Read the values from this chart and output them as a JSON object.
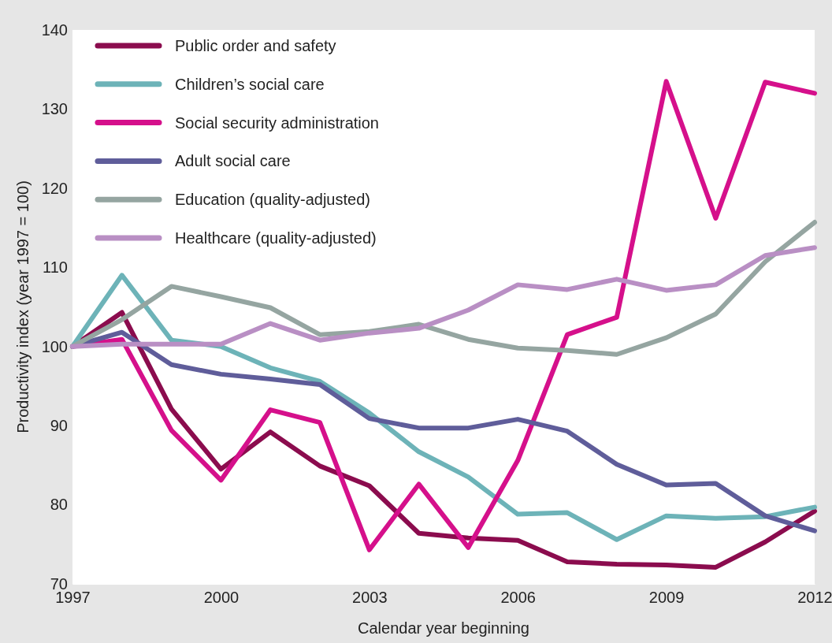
{
  "chart_data": {
    "type": "line",
    "xlabel": "Calendar year beginning",
    "ylabel": "Productivity index (year 1997 = 100)",
    "x": [
      1997,
      1998,
      1999,
      2000,
      2001,
      2002,
      2003,
      2004,
      2005,
      2006,
      2007,
      2008,
      2009,
      2010,
      2011,
      2012
    ],
    "xlim": [
      1997,
      2012
    ],
    "xticks": [
      1997,
      2000,
      2003,
      2006,
      2009,
      2012
    ],
    "ylim": [
      70,
      140
    ],
    "yticks": [
      70,
      80,
      90,
      100,
      110,
      120,
      130,
      140
    ],
    "grid": false,
    "legend": "top left",
    "marker": "none",
    "line_style": "solid",
    "series": [
      {
        "name": "Public order and safety",
        "color": "#8b0c4e",
        "values": [
          100,
          104.3,
          92.1,
          84.5,
          89.2,
          84.9,
          82.4,
          76.4,
          75.8,
          75.5,
          72.8,
          72.5,
          72.4,
          72.1,
          75.3,
          79.2
        ]
      },
      {
        "name": "Children’s social care",
        "color": "#6db3b8",
        "values": [
          100,
          109,
          100.8,
          100,
          97.3,
          95.6,
          91.6,
          86.7,
          83.5,
          78.8,
          79,
          75.6,
          78.6,
          78.3,
          78.5,
          79.7
        ]
      },
      {
        "name": "Social security administration",
        "color": "#d5108b",
        "values": [
          100,
          100.9,
          89.4,
          83.1,
          92,
          90.4,
          74.3,
          82.6,
          74.6,
          85.6,
          101.5,
          103.7,
          133.5,
          116.2,
          133.4,
          132
        ]
      },
      {
        "name": "Adult social care",
        "color": "#5f5d9a",
        "values": [
          100,
          101.8,
          97.7,
          96.5,
          95.9,
          95.2,
          90.9,
          89.7,
          89.7,
          90.8,
          89.3,
          85.1,
          82.5,
          82.7,
          78.6,
          76.7
        ]
      },
      {
        "name": "Education (quality-adjusted)",
        "color": "#95a5a1",
        "values": [
          100,
          103.4,
          107.6,
          106.3,
          104.9,
          101.5,
          101.9,
          102.8,
          100.9,
          99.8,
          99.5,
          99,
          101.1,
          104.1,
          110.7,
          115.7
        ]
      },
      {
        "name": "Healthcare (quality-adjusted)",
        "color": "#b98fc4",
        "values": [
          100,
          100.3,
          100.3,
          100.3,
          102.9,
          100.8,
          101.7,
          102.3,
          104.6,
          107.8,
          107.2,
          108.5,
          107.1,
          107.8,
          111.5,
          112.5
        ]
      }
    ]
  }
}
